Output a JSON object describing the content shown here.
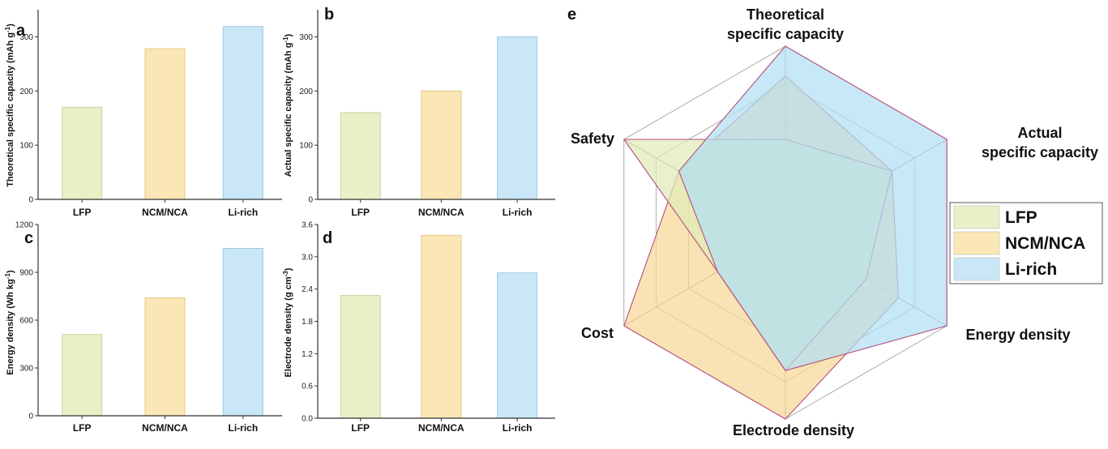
{
  "chart_data": [
    {
      "panel": "a",
      "type": "bar",
      "categories": [
        "LFP",
        "NCM/NCA",
        "Li-rich"
      ],
      "values": [
        170,
        278,
        319
      ],
      "ylabel": "Theoretical specific capacity (mAh g",
      "ylabel_sup": "-1",
      "ylabel_tail": ")",
      "ylim": [
        0,
        350
      ],
      "yticks": [
        "0",
        "100",
        "200",
        "300"
      ],
      "ytick_values": [
        0,
        100,
        200,
        300
      ]
    },
    {
      "panel": "b",
      "type": "bar",
      "categories": [
        "LFP",
        "NCM/NCA",
        "Li-rich"
      ],
      "values": [
        160,
        200,
        300
      ],
      "ylabel": "Actual specific capacity (mAh g",
      "ylabel_sup": "-1",
      "ylabel_tail": ")",
      "ylim": [
        0,
        350
      ],
      "yticks": [
        "0",
        "100",
        "200",
        "300"
      ],
      "ytick_values": [
        0,
        100,
        200,
        300
      ]
    },
    {
      "panel": "c",
      "type": "bar",
      "categories": [
        "LFP",
        "NCM/NCA",
        "Li-rich"
      ],
      "values": [
        510,
        740,
        1050
      ],
      "ylabel": "Energy density (Wh kg",
      "ylabel_sup": "-1",
      "ylabel_tail": ")",
      "ylim": [
        0,
        1200
      ],
      "yticks": [
        "0",
        "300",
        "600",
        "900",
        "1200"
      ],
      "ytick_values": [
        0,
        300,
        600,
        900,
        1200
      ]
    },
    {
      "panel": "d",
      "type": "bar",
      "categories": [
        "LFP",
        "NCM/NCA",
        "Li-rich"
      ],
      "values": [
        2.28,
        3.4,
        2.7
      ],
      "ylabel": "Electrode density (g cm",
      "ylabel_sup": "-3",
      "ylabel_tail": ")",
      "ylim": [
        0,
        3.6
      ],
      "yticks": [
        "0.0",
        "0.6",
        "1.2",
        "1.8",
        "2.4",
        "3.0",
        "3.6"
      ],
      "ytick_values": [
        0,
        0.6,
        1.2,
        1.8,
        2.4,
        3.0,
        3.6
      ]
    },
    {
      "panel": "e",
      "type": "radar",
      "axes": [
        "Theoretical specific capacity",
        "Actual specific capacity",
        "Energy density",
        "Electrode density",
        "Cost",
        "Safety"
      ],
      "axis_label_lines": [
        [
          "Theoretical",
          "specific capacity"
        ],
        [
          "Actual",
          "specific capacity"
        ],
        [
          "Energy density"
        ],
        [
          "Electrode density"
        ],
        [
          "Cost"
        ],
        [
          "Safety"
        ]
      ],
      "rmax": 5,
      "grid_levels": 5,
      "series": [
        {
          "name": "LFP",
          "values": [
            2.5,
            3.3,
            2.5,
            3.7,
            2.1,
            5.0
          ]
        },
        {
          "name": "NCM/NCA",
          "values": [
            4.2,
            3.3,
            3.5,
            5.0,
            5.0,
            3.3
          ]
        },
        {
          "name": "Li-rich",
          "values": [
            5.0,
            5.0,
            5.0,
            3.7,
            2.1,
            3.3
          ]
        }
      ],
      "legend_position": "right"
    }
  ],
  "colors": {
    "LFP": "#e8f0c8",
    "NCM/NCA": "#fbe7b5",
    "Li-rich": "#c9e7f7",
    "LFP_radar": "#dfecb8",
    "NCM/NCA_radar": "#f6d898",
    "Li-rich_radar": "#b2dff2",
    "outline": "#b84d7c"
  }
}
